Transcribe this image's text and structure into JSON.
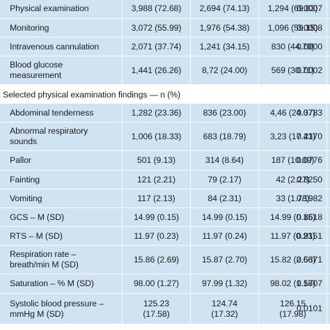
{
  "table": {
    "top_rows": [
      {
        "label": "Physical examination",
        "v1": "3,988 (72.68)",
        "v2": "2,694 (74.13)",
        "v3": "1,294 (69.83)",
        "p": "0.0007"
      },
      {
        "label": "Monitoring",
        "v1": "3,072 (55.99)",
        "v2": "1,976 (54.38)",
        "v3": "1,096 (59.15)",
        "p": "0.0008"
      },
      {
        "label": "Intravenous cannulation",
        "v1": "2,071 (37.74)",
        "v2": "1,241 (34.15)",
        "v3": "830 (44.79)",
        "p": "0.0000"
      },
      {
        "label": "Blood glucose measurement",
        "v1": "1,441 (26.26)",
        "v2": "8,72 (24.00)",
        "v3": "569 (30.71)",
        "p": "0.0002"
      }
    ],
    "section_title": "Selected physical examination findings — n (%)",
    "bottom_rows": [
      {
        "label": "Abdominal tenderness",
        "v1": "1,282 (23.36)",
        "v2": "836 (23.00)",
        "v3": "4,46 (24.07)",
        "p": "0.3783"
      },
      {
        "label": "Abnormal respiratory sounds",
        "v1": "1,006 (18.33)",
        "v2": "683 (18.79)",
        "v3": "3,23 (17.43)",
        "p": "0.2170"
      },
      {
        "label": "Pallor",
        "v1": "501 (9.13)",
        "v2": "314 (8.64)",
        "v3": "187 (10.09)",
        "p": "0.0776"
      },
      {
        "label": "Fainting",
        "v1": "121 (2.21)",
        "v2": "79 (2.17)",
        "v3": "42 (2.27)",
        "p": "0.8250"
      },
      {
        "label": "Vomiting",
        "v1": "117 (2.13)",
        "v2": "84 (2.31)",
        "v3": "33 (1.78)",
        "p": "0.1982"
      },
      {
        "label": "GCS – M (SD)",
        "v1": "14.99 (0.15)",
        "v2": "14.99 (0.15)",
        "v3": "14.99 (0.15)",
        "p": "0.8618"
      },
      {
        "label": "RTS – M (SD)",
        "v1": "11.97 (0.23)",
        "v2": "11.97 (0.24)",
        "v3": "11.97 (0.23)",
        "p": "0.9151"
      },
      {
        "label": "Respiration rate – breath/min M (SD)",
        "v1": "15.86 (2.69)",
        "v2": "15.87 (2.70)",
        "v3": "15.82 (2.66)",
        "p": "0.5371"
      },
      {
        "label": "Saturation – % M (SD)",
        "v1": "98.00 (1.27)",
        "v2": "97.99 (1.32)",
        "v3": "98.02 (1.18)",
        "p": "0.5707"
      },
      {
        "label": "Systolic blood pressure – mmHg M (SD)",
        "v1": "125.23 (17.58)",
        "v2": "124.74 (17.32)",
        "v3": "126.15 (17.98)",
        "p": "0.0101"
      }
    ]
  }
}
